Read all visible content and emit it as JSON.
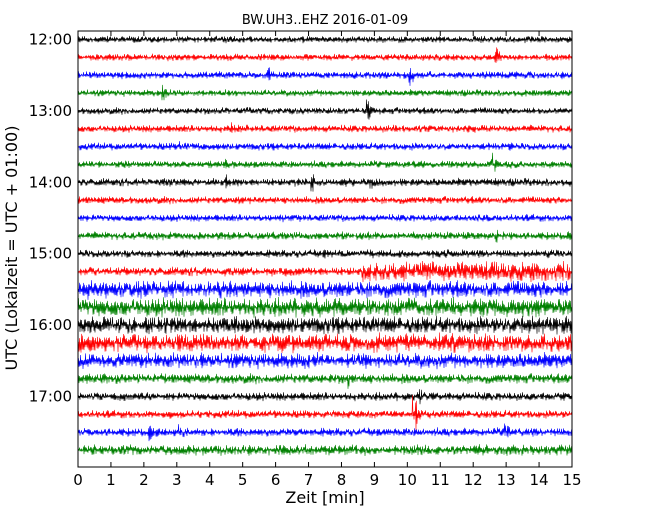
{
  "chart_data": {
    "type": "line",
    "title": "BW.UH3..EHZ 2016-01-09",
    "xlabel": "Zeit  [min]",
    "ylabel": "UTC (Lokalzeit = UTC + 01:00)",
    "xlim": [
      0,
      15
    ],
    "x_ticks": [
      "0",
      "1",
      "2",
      "3",
      "4",
      "5",
      "6",
      "7",
      "8",
      "9",
      "10",
      "11",
      "12",
      "13",
      "14",
      "15"
    ],
    "y_ticks": [
      "12:00",
      "13:00",
      "14:00",
      "15:00",
      "16:00",
      "17:00"
    ],
    "row_interval_minutes": 15,
    "first_row": "12:00",
    "grid": false,
    "legend": "none",
    "colors": [
      "#000000",
      "#ff0000",
      "#0000ff",
      "#008000"
    ],
    "rows": [
      {
        "start": "12:00",
        "color": "#000000",
        "amplitude": 0.22,
        "events": []
      },
      {
        "start": "12:15",
        "color": "#ff0000",
        "amplitude": 0.22,
        "events": [
          [
            12.7,
            0.75
          ]
        ]
      },
      {
        "start": "12:30",
        "color": "#0000ff",
        "amplitude": 0.24,
        "events": [
          [
            5.8,
            0.55
          ],
          [
            10.1,
            0.7
          ]
        ]
      },
      {
        "start": "12:45",
        "color": "#008000",
        "amplitude": 0.22,
        "events": [
          [
            2.6,
            0.6
          ]
        ]
      },
      {
        "start": "13:00",
        "color": "#000000",
        "amplitude": 0.22,
        "events": [
          [
            8.8,
            0.85
          ]
        ]
      },
      {
        "start": "13:15",
        "color": "#ff0000",
        "amplitude": 0.24,
        "events": [
          [
            4.7,
            0.5
          ],
          [
            9.6,
            0.4
          ]
        ]
      },
      {
        "start": "13:30",
        "color": "#0000ff",
        "amplitude": 0.24,
        "events": [
          [
            3.1,
            0.35
          ]
        ]
      },
      {
        "start": "13:45",
        "color": "#008000",
        "amplitude": 0.24,
        "events": [
          [
            12.6,
            0.75
          ],
          [
            4.5,
            0.4
          ]
        ]
      },
      {
        "start": "14:00",
        "color": "#000000",
        "amplitude": 0.26,
        "events": [
          [
            7.1,
            0.8
          ],
          [
            4.5,
            0.5
          ],
          [
            8.9,
            0.45
          ]
        ]
      },
      {
        "start": "14:15",
        "color": "#ff0000",
        "amplitude": 0.24,
        "events": [
          [
            4.9,
            0.45
          ]
        ]
      },
      {
        "start": "14:30",
        "color": "#0000ff",
        "amplitude": 0.24,
        "events": [
          [
            5.6,
            0.4
          ]
        ]
      },
      {
        "start": "14:45",
        "color": "#008000",
        "amplitude": 0.26,
        "events": [
          [
            12.7,
            0.55
          ]
        ]
      },
      {
        "start": "15:00",
        "color": "#000000",
        "amplitude": 0.26,
        "events": [
          [
            7.5,
            0.4
          ]
        ]
      },
      {
        "start": "15:15",
        "color": "#ff0000",
        "amplitude": 0.3,
        "events": [
          [
            4.0,
            0.5
          ]
        ],
        "segments": [
          [
            8.6,
            15,
            0.62
          ]
        ]
      },
      {
        "start": "15:30",
        "color": "#0000ff",
        "amplitude": 0.55,
        "events": [
          [
            0.3,
            0.7
          ]
        ]
      },
      {
        "start": "15:45",
        "color": "#008000",
        "amplitude": 0.62,
        "events": []
      },
      {
        "start": "16:00",
        "color": "#000000",
        "amplitude": 0.55,
        "events": [
          [
            13.5,
            0.85
          ]
        ]
      },
      {
        "start": "16:15",
        "color": "#ff0000",
        "amplitude": 0.6,
        "events": [
          [
            13.0,
            0.7
          ]
        ]
      },
      {
        "start": "16:30",
        "color": "#0000ff",
        "amplitude": 0.5,
        "events": [
          [
            8.3,
            0.6
          ]
        ]
      },
      {
        "start": "16:45",
        "color": "#008000",
        "amplitude": 0.32,
        "events": [
          [
            8.2,
            0.7
          ]
        ]
      },
      {
        "start": "17:00",
        "color": "#000000",
        "amplitude": 0.28,
        "events": [
          [
            10.4,
            0.7
          ],
          [
            14.2,
            0.5
          ]
        ]
      },
      {
        "start": "17:15",
        "color": "#ff0000",
        "amplitude": 0.26,
        "events": [
          [
            10.2,
            1.4
          ]
        ]
      },
      {
        "start": "17:30",
        "color": "#0000ff",
        "amplitude": 0.28,
        "events": [
          [
            3.1,
            0.7
          ],
          [
            2.2,
            0.55
          ],
          [
            13.0,
            0.6
          ]
        ]
      },
      {
        "start": "17:45",
        "color": "#008000",
        "amplitude": 0.34,
        "events": [
          [
            0.5,
            0.55
          ]
        ]
      }
    ]
  }
}
